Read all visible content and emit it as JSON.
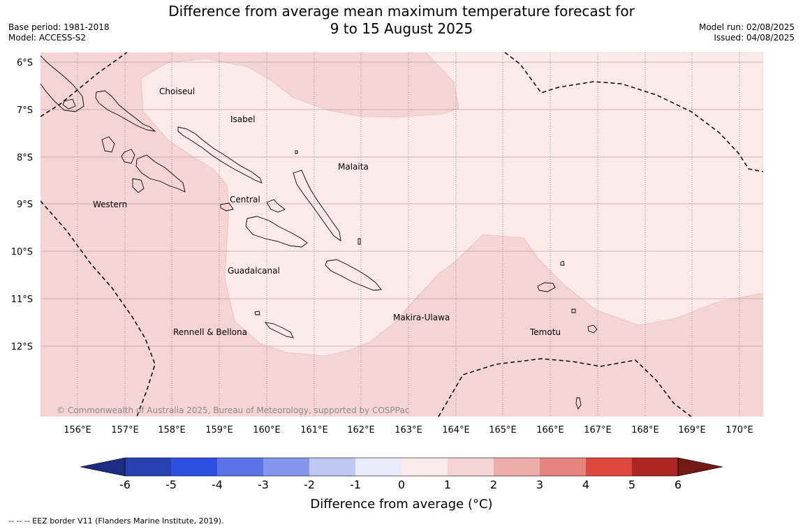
{
  "title": {
    "line1": "Difference from average mean maximum temperature forecast for",
    "line2": "9 to 15 August 2025"
  },
  "meta_left": {
    "base_period": "Base period: 1981-2018",
    "model": "Model: ACCESS-S2"
  },
  "meta_right": {
    "model_run": "Model run: 02/08/2025",
    "issued": "Issued: 04/08/2025"
  },
  "map": {
    "lat_labels": [
      "6°S",
      "7°S",
      "8°S",
      "9°S",
      "10°S",
      "11°S",
      "12°S"
    ],
    "lon_labels": [
      "156°E",
      "157°E",
      "158°E",
      "159°E",
      "160°E",
      "161°E",
      "162°E",
      "163°E",
      "164°E",
      "165°E",
      "166°E",
      "167°E",
      "168°E",
      "169°E",
      "170°E"
    ],
    "province_labels": [
      {
        "name": "Choiseul"
      },
      {
        "name": "Isabel"
      },
      {
        "name": "Malaita"
      },
      {
        "name": "Western"
      },
      {
        "name": "Central"
      },
      {
        "name": "Guadalcanal"
      },
      {
        "name": "Makira-Ulawa"
      },
      {
        "name": "Temotu"
      },
      {
        "name": "Rennell & Bellona"
      }
    ],
    "copyright": "© Commonwealth of Australia 2025, Bureau of Meteorology, supported by COSPPac",
    "anomaly_colors": {
      "0_to_1": "#fbeae9",
      "1_to_2": "#f5d5d4"
    }
  },
  "colorbar": {
    "ticks": [
      "-6",
      "-5",
      "-4",
      "-3",
      "-2",
      "-1",
      "0",
      "1",
      "2",
      "3",
      "4",
      "5",
      "6"
    ],
    "colors": [
      "#1c2d84",
      "#2840b0",
      "#2f4fe0",
      "#5b73e6",
      "#8597ec",
      "#bfc7f3",
      "#e8ebfb",
      "#fbeae9",
      "#f5d5d4",
      "#edaeab",
      "#e5847e",
      "#de4a3e",
      "#ad2621",
      "#741a16"
    ],
    "label": "Difference from average (°C)"
  },
  "footer": "--  --  -- EEZ border V11 (Flanders Marine Institute, 2019)."
}
